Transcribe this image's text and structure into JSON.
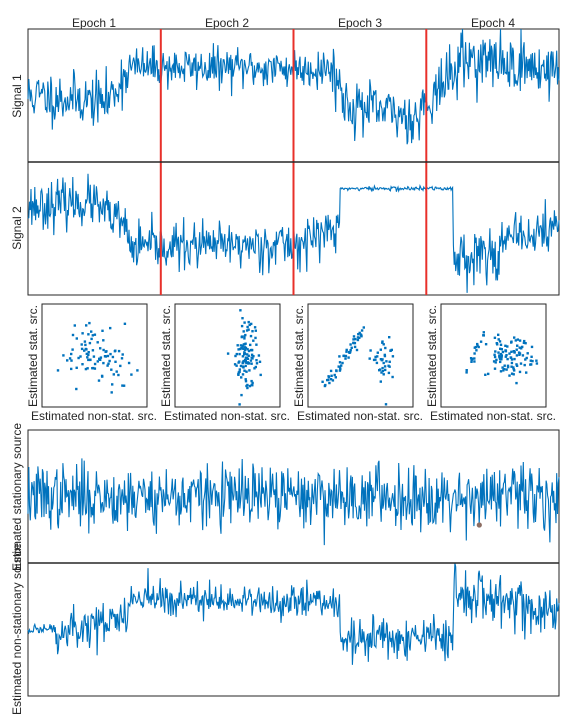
{
  "colors": {
    "signal": "#0072BD",
    "epoch_boundary": "#E8302A",
    "frame": "#262626",
    "marker": "#8C6D62"
  },
  "chart_data": [
    {
      "type": "line",
      "panel": "signal-1",
      "ylabel": "Signal 1",
      "epochs": [
        "Epoch 1",
        "Epoch 2",
        "Epoch 3",
        "Epoch 4"
      ],
      "epoch_boundaries": [
        1,
        2,
        3
      ],
      "x_range": [
        0,
        4
      ],
      "ylim": [
        -3.5,
        3.5
      ],
      "segments": [
        {
          "x": [
            0.0,
            0.6
          ],
          "level": [
            0.0,
            -0.3
          ],
          "noise": 0.9
        },
        {
          "x": [
            0.6,
            0.75
          ],
          "level": [
            -0.3,
            1.3
          ],
          "noise": 0.9
        },
        {
          "x": [
            0.75,
            2.3
          ],
          "level": [
            1.5,
            1.4
          ],
          "noise": 0.7
        },
        {
          "x": [
            2.3,
            2.4
          ],
          "level": [
            1.3,
            -0.5
          ],
          "noise": 1.0
        },
        {
          "x": [
            2.4,
            2.95
          ],
          "level": [
            -0.5,
            -1.2
          ],
          "noise": 0.9
        },
        {
          "x": [
            2.95,
            3.25
          ],
          "level": [
            -0.7,
            1.5
          ],
          "noise": 0.9
        },
        {
          "x": [
            3.25,
            4.0
          ],
          "level": [
            2.0,
            1.3
          ],
          "noise": 1.0
        }
      ]
    },
    {
      "type": "line",
      "panel": "signal-2",
      "ylabel": "Signal 2",
      "x_range": [
        0,
        4
      ],
      "ylim": [
        -3.5,
        3.5
      ],
      "segments": [
        {
          "x": [
            0.0,
            0.5
          ],
          "level": [
            1.2,
            1.4
          ],
          "noise": 0.8
        },
        {
          "x": [
            0.5,
            0.75
          ],
          "level": [
            1.2,
            0.0
          ],
          "noise": 0.8
        },
        {
          "x": [
            0.75,
            2.1
          ],
          "level": [
            -1.0,
            -0.8
          ],
          "noise": 0.8
        },
        {
          "x": [
            2.1,
            2.35
          ],
          "level": [
            -0.5,
            0.0
          ],
          "noise": 0.8
        },
        {
          "x": [
            2.35,
            3.2
          ],
          "level": [
            2.1,
            2.1
          ],
          "noise": 0.08
        },
        {
          "x": [
            3.2,
            3.55
          ],
          "level": [
            -1.5,
            -1.2
          ],
          "noise": 0.9
        },
        {
          "x": [
            3.55,
            4.0
          ],
          "level": [
            -0.8,
            0.1
          ],
          "noise": 0.8
        }
      ]
    },
    {
      "type": "scatter",
      "panel": "epoch-1-scatter",
      "xlabel": "Estimated non-stat. src.",
      "ylabel": "Estimated stat. src.",
      "xlim": [
        -3,
        3
      ],
      "ylim": [
        -3,
        3
      ],
      "clusters": [
        {
          "n": 90,
          "cx": 0.1,
          "cy": 0.0,
          "sx": 1.0,
          "sy": 0.9
        }
      ]
    },
    {
      "type": "scatter",
      "panel": "epoch-2-scatter",
      "xlabel": "Estimated non-stat. src.",
      "ylabel": "Estimated stat. src.",
      "xlim": [
        -3,
        3
      ],
      "ylim": [
        -3,
        3
      ],
      "clusters": [
        {
          "n": 110,
          "cx": 1.0,
          "cy": 0.0,
          "sx": 0.3,
          "sy": 0.9
        }
      ]
    },
    {
      "type": "scatter",
      "panel": "epoch-3-scatter",
      "xlabel": "Estimated non-stat. src.",
      "ylabel": "Estimated stat. src.",
      "xlim": [
        -3,
        3
      ],
      "ylim": [
        -3,
        3
      ],
      "clusters": [
        {
          "n": 55,
          "line": true,
          "x0": -2.0,
          "y0": -1.8,
          "x1": 0.2,
          "y1": 1.6,
          "spread": 0.15
        },
        {
          "n": 40,
          "cx": 1.3,
          "cy": -0.3,
          "sx": 0.35,
          "sy": 0.6
        }
      ]
    },
    {
      "type": "scatter",
      "panel": "epoch-4-scatter",
      "xlabel": "Estimated non-stat. src.",
      "ylabel": "Estimated stat. src.",
      "xlim": [
        -3,
        3
      ],
      "ylim": [
        -3,
        3
      ],
      "clusters": [
        {
          "n": 18,
          "line": true,
          "x0": -1.6,
          "y0": -1.0,
          "x1": -0.5,
          "y1": 1.4,
          "spread": 0.1
        },
        {
          "n": 100,
          "cx": 1.1,
          "cy": 0.0,
          "sx": 0.6,
          "sy": 0.6
        }
      ]
    },
    {
      "type": "line",
      "panel": "stationary-source",
      "ylabel": "Estimated stationary source",
      "x_range": [
        0,
        4
      ],
      "ylim": [
        -3.5,
        3.5
      ],
      "segments": [
        {
          "x": [
            0.0,
            4.0
          ],
          "level": [
            0.0,
            0.0
          ],
          "noise": 1.1
        }
      ],
      "marker": {
        "x": 3.4,
        "y": -1.5
      }
    },
    {
      "type": "line",
      "panel": "non-stationary-source",
      "ylabel": "Estimated non-stationary source",
      "x_range": [
        0,
        4
      ],
      "ylim": [
        -3.5,
        3.5
      ],
      "segments": [
        {
          "x": [
            0.0,
            0.2
          ],
          "level": [
            0.0,
            0.0
          ],
          "noise": 0.15
        },
        {
          "x": [
            0.2,
            0.75
          ],
          "level": [
            -0.4,
            0.8
          ],
          "noise": 0.8
        },
        {
          "x": [
            0.75,
            2.35
          ],
          "level": [
            1.6,
            1.5
          ],
          "noise": 0.6
        },
        {
          "x": [
            2.35,
            3.2
          ],
          "level": [
            -0.6,
            -0.4
          ],
          "noise": 0.7
        },
        {
          "x": [
            3.2,
            4.0
          ],
          "level": [
            2.0,
            1.0
          ],
          "noise": 0.9
        }
      ]
    }
  ]
}
